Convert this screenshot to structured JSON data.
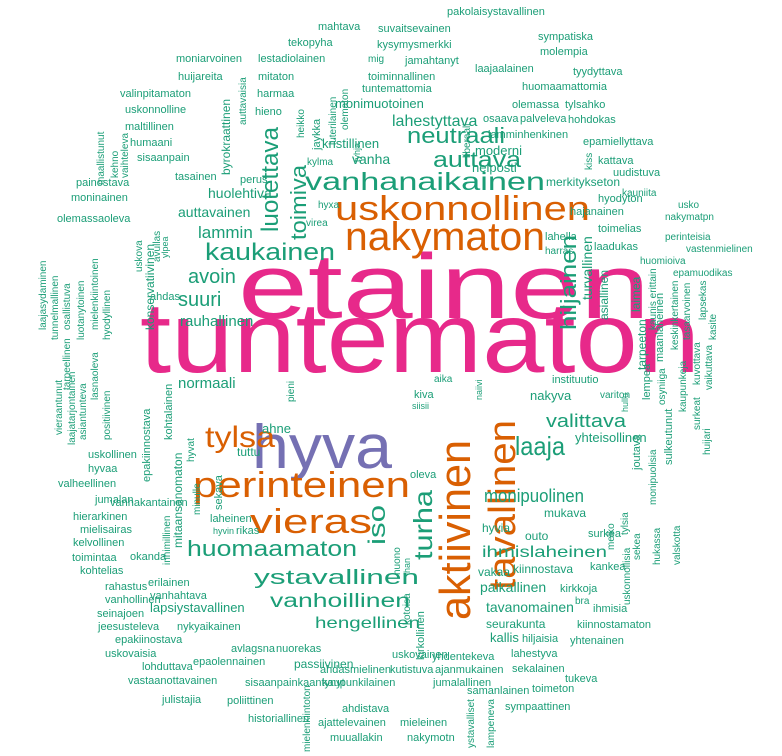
{
  "words": [
    "etainen",
    "tuntematon",
    "hyva",
    "nakymaton",
    "uskonnollinen",
    "perinteinen",
    "vieras",
    "tylsa",
    "aktiivinen",
    "tavallinen",
    "vanhanaikainen",
    "kaukainen",
    "luotettava",
    "toimiva",
    "neutraali",
    "auttava",
    "hiljainen",
    "laaja",
    "turha",
    "iso",
    "monipuolinen",
    "huomaamaton",
    "ystavallinen",
    "vanhoillinen",
    "hengellinen",
    "ihmislaheinen",
    "valittava",
    "yhteisollinen",
    "huolehtiva",
    "auttavainen",
    "lammin",
    "avoin",
    "suuri",
    "rauhallinen",
    "normaali",
    "lahestyttava",
    "kristillinen",
    "vanha",
    "monimuotoinen",
    "paikallinen",
    "tavanomainen",
    "merkitykseton",
    "helposti",
    "moderni",
    "nakyva",
    "lahella",
    "harras",
    "toimelias",
    "laadukas",
    "hajanainen",
    "hyodyton",
    "kauniita",
    "usko",
    "nakymatpn",
    "perinteisia",
    "vastenmielinen",
    "huomioiva",
    "epamuodikas",
    "uudistuva",
    "kattava",
    "epamiellyttava",
    "lamminhenkinen",
    "osaava",
    "palveleva",
    "hohdokas",
    "olemassa",
    "tylsahko",
    "huomaamattomia",
    "laajaalainen",
    "tyydyttava",
    "toiminnallinen",
    "tuntemattomia",
    "jamahtanyt",
    "mig",
    "kysymysmerkki",
    "suvaitsevainen",
    "molempia",
    "sympatiska",
    "pakolaisystavallinen",
    "mahtava",
    "tekopyha",
    "lestadiolainen",
    "moniarvoinen",
    "huijareita",
    "mitaton",
    "valinpitamaton",
    "harmaa",
    "uskonnolline",
    "hieno",
    "maltillinen",
    "humaani",
    "sisaanpain",
    "tasainen",
    "perus",
    "kylma",
    "painostava",
    "moninainen",
    "olemassaoleva",
    "hyxa",
    "virea",
    "ahdas",
    "byrokraattinen",
    "auttavaisia",
    "heikko",
    "jaykka",
    "luterilainen",
    "olematon",
    "liberaali",
    "tyhja",
    "kehno",
    "vaihteleva",
    "uskova",
    "avullas",
    "konservatiivinen",
    "ylpea",
    "laajasydaminen",
    "tunnelmallinen",
    "osallistuva",
    "tarpeellinen",
    "luotanytoinen",
    "hyodyllinen",
    "mielenkiintoinen",
    "lasnaoleva",
    "vieraantunut",
    "laajatarjontainen",
    "asiantunteva",
    "positiivinen",
    "epakiinnostava",
    "kohtalainen",
    "mitaansanomaton",
    "minulle",
    "inhimillinen",
    "sekava",
    "hyvat",
    "pieni",
    "ahne",
    "tuttu",
    "vanhakantainen",
    "laheinen",
    "hyvin",
    "rikas",
    "aika",
    "kiva",
    "siisii",
    "naiivi",
    "instituutio",
    "hullu",
    "variton",
    "hyvia",
    "outo",
    "mukava",
    "surkea",
    "vakaa",
    "kiinnostava",
    "kankea",
    "kirkkoja",
    "bra",
    "ihmisia",
    "seurakunta",
    "kiinnostamaton",
    "kallis",
    "hiljaisia",
    "yhtenainen",
    "lahestyva",
    "yhdentekeva",
    "ajanmukainen",
    "sekalainen",
    "samanlainen",
    "toimeton",
    "tukeva",
    "sympaattinen",
    "lampeneva",
    "ystavalliset",
    "kirkollinen",
    "kotoisa",
    "huono",
    "ihan",
    "oleva",
    "uskovainen",
    "kutistuva",
    "ahdasmielinen",
    "kaupunkilainen",
    "jumalallinen",
    "ahdistava",
    "mieleinen",
    "ajattelevainen",
    "nakymotn",
    "muuallakin",
    "historiallinen",
    "mielenkiintoton",
    "poliittinen",
    "julistajia",
    "vastaanottavainen",
    "sisaanpainkaantynyt",
    "passiivinen",
    "epaolennainen",
    "lohduttava",
    "avlagsna",
    "nuorekas",
    "uskovaisia",
    "epakiinostava",
    "jeesusteleva",
    "nykyaikainen",
    "seinajoen",
    "lapsiystavallinen",
    "vanhollinen",
    "vanhahtava",
    "erilainen",
    "rahastus",
    "kohtelias",
    "toimintaa",
    "kelvollinen",
    "mielisairas",
    "hierarkinen",
    "jumalan",
    "valheellinen",
    "hyvaa",
    "uskollinen",
    "okanda",
    "joutava",
    "tarpeeton",
    "laimea",
    "asiallinen",
    "turvallinen",
    "maanlaheinen",
    "kaunis erittain",
    "keskinkertainen",
    "tasaarvoinen",
    "lapsekas",
    "kasite",
    "lempea",
    "osyniiga",
    "sulkeutunut",
    "kaupunkeja",
    "kuvottava",
    "vaikuttava",
    "surkeat",
    "huijari",
    "monipuolisia",
    "tylsia",
    "melko",
    "uskonnollisia",
    "sekea",
    "hukassa",
    "valskotta",
    "kiss",
    "maallistunut"
  ]
}
